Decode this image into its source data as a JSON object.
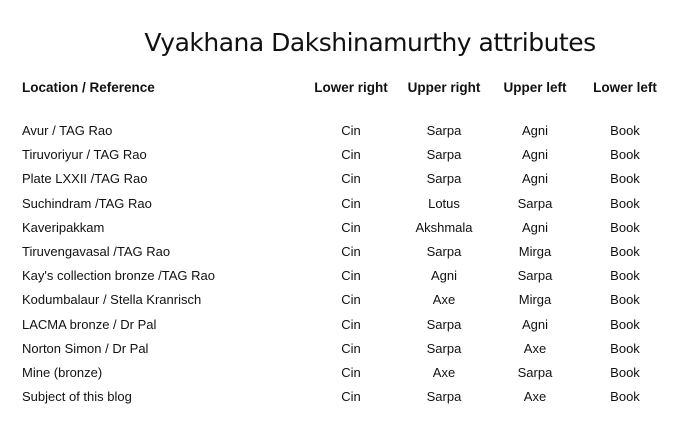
{
  "title": "Vyakhana Dakshinamurthy attributes",
  "table": {
    "headers": [
      "Location / Reference",
      "Lower right",
      "Upper right",
      "Upper left",
      "Lower left"
    ],
    "rows": [
      [
        "Avur / TAG Rao",
        "Cin",
        "Sarpa",
        "Agni",
        "Book"
      ],
      [
        "Tiruvoriyur / TAG Rao",
        "Cin",
        "Sarpa",
        "Agni",
        "Book"
      ],
      [
        "Plate LXXII /TAG Rao",
        "Cin",
        "Sarpa",
        "Agni",
        "Book"
      ],
      [
        "Suchindram /TAG Rao",
        "Cin",
        "Lotus",
        "Sarpa",
        "Book"
      ],
      [
        "Kaveripakkam",
        "Cin",
        "Akshmala",
        "Agni",
        "Book"
      ],
      [
        "Tiruvengavasal /TAG Rao",
        "Cin",
        "Sarpa",
        "Mirga",
        "Book"
      ],
      [
        "Kay's collection bronze /TAG Rao",
        "Cin",
        "Agni",
        "Sarpa",
        "Book"
      ],
      [
        "Kodumbalaur / Stella Kranrisch",
        "Cin",
        "Axe",
        "Mirga",
        "Book"
      ],
      [
        "LACMA bronze / Dr Pal",
        "Cin",
        "Sarpa",
        "Agni",
        "Book"
      ],
      [
        "Norton Simon / Dr Pal",
        "Cin",
        "Sarpa",
        "Axe",
        "Book"
      ],
      [
        "Mine (bronze)",
        "Cin",
        "Axe",
        "Sarpa",
        "Book"
      ],
      [
        "Subject of this blog",
        "Cin",
        "Sarpa",
        "Axe",
        "Book"
      ]
    ]
  }
}
